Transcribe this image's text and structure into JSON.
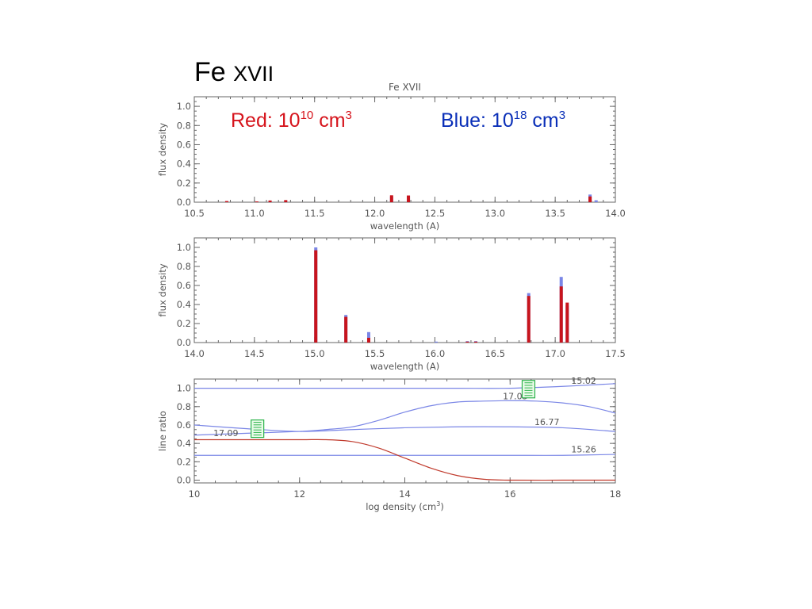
{
  "slide": {
    "title_main": "Fe",
    "title_ion": "XVII",
    "legend_red_text": "Red: 10",
    "legend_red_exp": "10",
    "legend_red_unit": " cm",
    "legend_red_unit_exp": "3",
    "legend_blue_text": "Blue: 10",
    "legend_blue_exp": "18",
    "legend_blue_unit": " cm",
    "legend_blue_unit_exp": "3"
  },
  "colors": {
    "red": "#c8141c",
    "blue": "#7a86e6",
    "curve_red": "#c0392b",
    "axis": "#666666",
    "label": "#555555",
    "marker": "#2bb34a"
  },
  "chart_data": [
    {
      "type": "bar",
      "title": "Fe  XVII",
      "xlabel": "wavelength (A)",
      "ylabel": "flux density",
      "xlim": [
        10.5,
        14.0
      ],
      "ylim": [
        0,
        1.1
      ],
      "xticks": [
        "10.5",
        "11.0",
        "11.5",
        "12.0",
        "12.5",
        "13.0",
        "13.5",
        "14.0"
      ],
      "yticks": [
        "0.0",
        "0.2",
        "0.4",
        "0.6",
        "0.8",
        "1.0"
      ],
      "series": [
        {
          "name": "Red: 10^10 cm^3",
          "x": [
            10.77,
            11.02,
            11.13,
            11.26,
            12.14,
            12.28,
            13.79
          ],
          "values": [
            0.012,
            0.008,
            0.018,
            0.022,
            0.072,
            0.07,
            0.06
          ]
        },
        {
          "name": "Blue: 10^18 cm^3",
          "x": [
            10.77,
            11.02,
            11.13,
            11.26,
            12.14,
            12.28,
            13.79,
            13.84
          ],
          "values": [
            0.01,
            0.006,
            0.012,
            0.014,
            0.06,
            0.062,
            0.08,
            0.02
          ]
        }
      ]
    },
    {
      "type": "bar",
      "title": "",
      "xlabel": "wavelength (A)",
      "ylabel": "flux density",
      "xlim": [
        14.0,
        17.5
      ],
      "ylim": [
        0,
        1.1
      ],
      "xticks": [
        "14.0",
        "14.5",
        "15.0",
        "15.5",
        "16.0",
        "16.5",
        "17.0",
        "17.5"
      ],
      "yticks": [
        "0.0",
        "0.2",
        "0.4",
        "0.6",
        "0.8",
        "1.0"
      ],
      "series": [
        {
          "name": "Red: 10^10 cm^3",
          "x": [
            15.01,
            15.26,
            15.45,
            16.27,
            16.34,
            16.78,
            17.05,
            17.1
          ],
          "values": [
            0.97,
            0.27,
            0.05,
            0.01,
            0.01,
            0.49,
            0.59,
            0.42
          ]
        },
        {
          "name": "Blue: 10^18 cm^3",
          "x": [
            15.01,
            15.26,
            15.45,
            16.01,
            16.27,
            16.34,
            16.78,
            17.05,
            17.1
          ],
          "values": [
            1.0,
            0.29,
            0.11,
            0.01,
            0.015,
            0.015,
            0.52,
            0.69,
            0.39
          ]
        }
      ]
    },
    {
      "type": "line",
      "title": "",
      "xlabel": "log density (cm",
      "xlabel_exp": "3",
      "xlabel_end": ")",
      "ylabel": "line ratio",
      "xlim": [
        10,
        18
      ],
      "ylim": [
        -0.03,
        1.1
      ],
      "xticks": [
        "10",
        "12",
        "14",
        "16",
        "18"
      ],
      "yticks": [
        "0.0",
        "0.2",
        "0.4",
        "0.6",
        "0.8",
        "1.0"
      ],
      "series": [
        {
          "name": "15.02",
          "color": "blue",
          "x": [
            10,
            11,
            12,
            13,
            14,
            15,
            16,
            17,
            18
          ],
          "values": [
            1.0,
            1.0,
            1.0,
            1.0,
            1.0,
            1.0,
            1.0,
            1.02,
            1.05
          ]
        },
        {
          "name": "17.05",
          "color": "blue",
          "x": [
            10,
            11,
            12,
            12.5,
            13,
            13.5,
            14,
            14.5,
            15,
            15.5,
            16,
            16.5,
            17,
            17.5,
            18
          ],
          "values": [
            0.49,
            0.51,
            0.53,
            0.55,
            0.58,
            0.65,
            0.74,
            0.81,
            0.85,
            0.86,
            0.865,
            0.86,
            0.84,
            0.8,
            0.73
          ]
        },
        {
          "name": "16.77",
          "color": "blue",
          "x": [
            10,
            11,
            12,
            13,
            14,
            15,
            16,
            17,
            18
          ],
          "values": [
            0.6,
            0.56,
            0.53,
            0.55,
            0.57,
            0.58,
            0.58,
            0.57,
            0.53
          ]
        },
        {
          "name": "15.26",
          "color": "blue",
          "x": [
            10,
            11,
            12,
            13,
            14,
            15,
            16,
            17,
            18
          ],
          "values": [
            0.27,
            0.27,
            0.27,
            0.27,
            0.27,
            0.27,
            0.27,
            0.27,
            0.28
          ]
        },
        {
          "name": "",
          "color": "red",
          "x": [
            10,
            11,
            12,
            12.5,
            13,
            13.5,
            14,
            14.5,
            15,
            15.5,
            16,
            17,
            18
          ],
          "values": [
            0.44,
            0.44,
            0.44,
            0.44,
            0.42,
            0.35,
            0.24,
            0.13,
            0.05,
            0.01,
            0.0,
            0.0,
            0.0
          ]
        }
      ],
      "labels": [
        {
          "text": "15.02",
          "x": 17.4,
          "y": 1.05
        },
        {
          "text": "17.05",
          "x": 16.1,
          "y": 0.88
        },
        {
          "text": "16.77",
          "x": 16.7,
          "y": 0.6
        },
        {
          "text": "17.09",
          "x": 10.6,
          "y": 0.48
        },
        {
          "text": "15.26",
          "x": 17.4,
          "y": 0.3
        }
      ],
      "markers": [
        {
          "name": "density-marker-left",
          "x": 11.2,
          "y": 0.56
        },
        {
          "name": "density-marker-right",
          "x": 16.35,
          "y": 0.99
        }
      ]
    }
  ]
}
